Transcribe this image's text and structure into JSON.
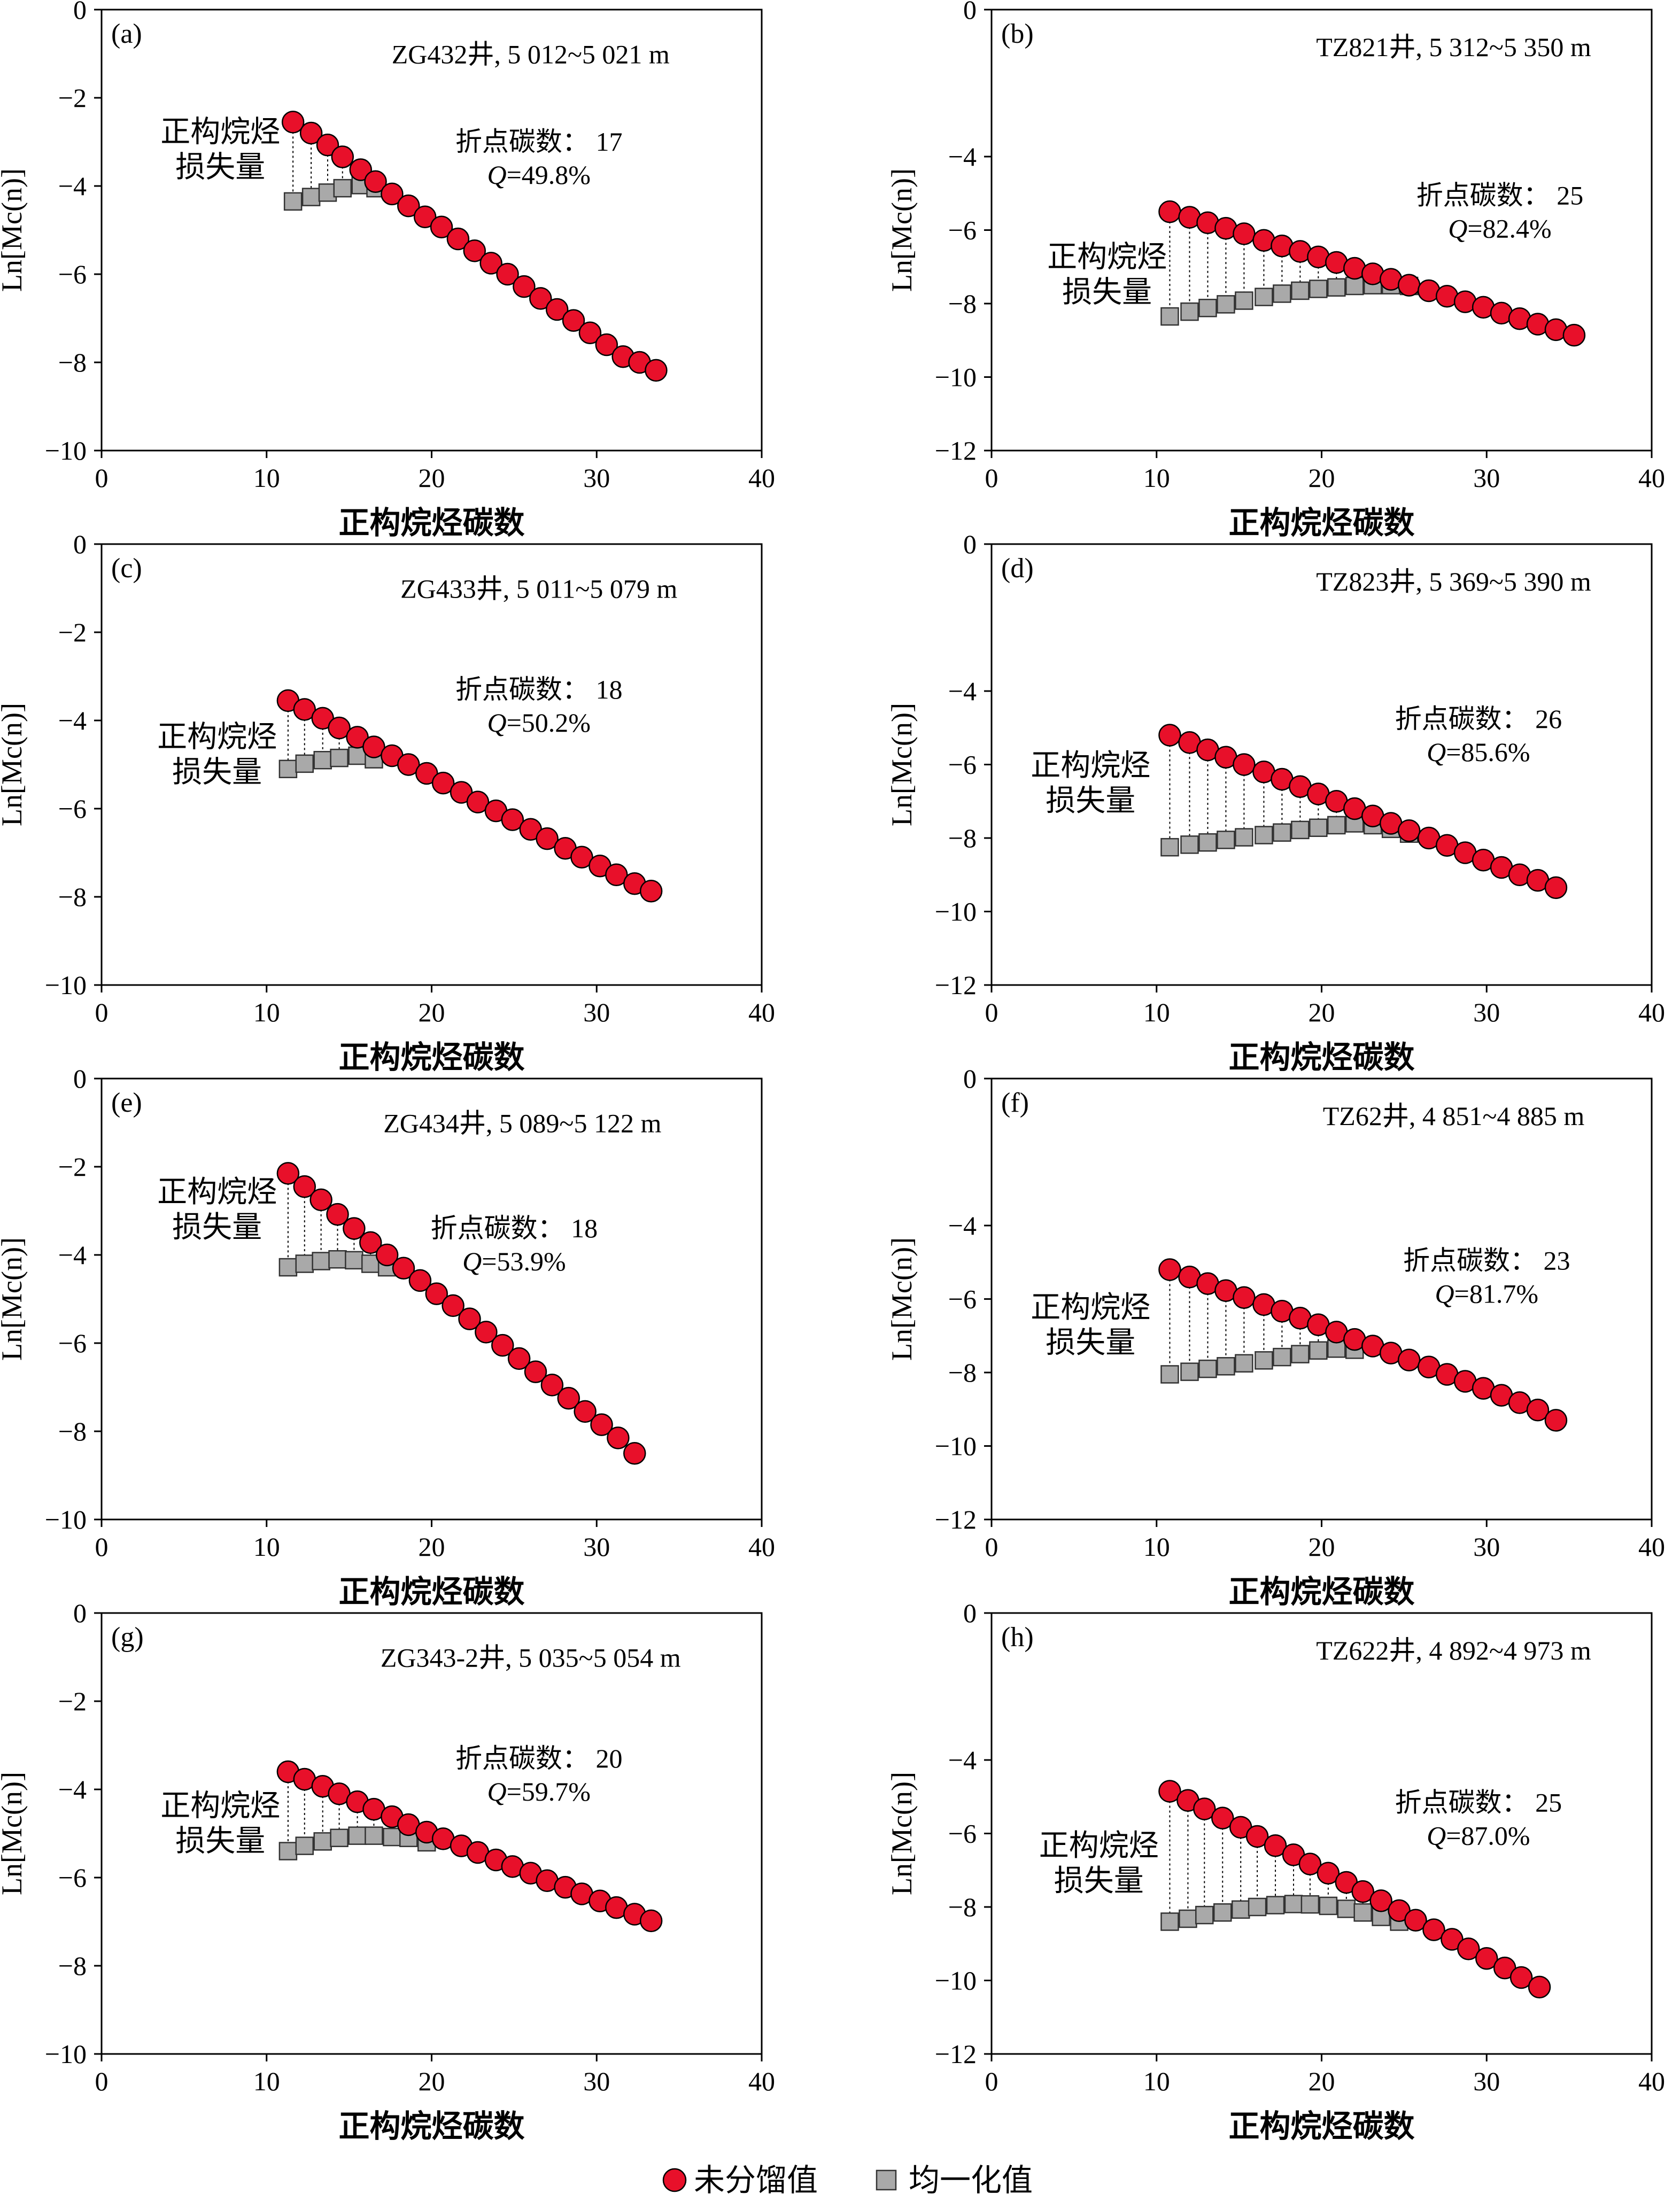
{
  "legend": {
    "raw_label": "未分馏值",
    "homog_label": "均一化值",
    "raw_color": "#e8102a",
    "homog_color": "#a9a9a9"
  },
  "common": {
    "xlabel": "正构烷烃碳数",
    "ylabel": "Ln[Mc(n)]",
    "loss_label_line1": "正构烷烃",
    "loss_label_line2": "损失量",
    "breakpoint_prefix": "折点碳数："
  },
  "chart_data": [
    {
      "panel": "(a)",
      "type": "scatter",
      "well": "ZG432井, 5 012~5 021 m",
      "breakpoint": 17,
      "Q": "49.8%",
      "xlim": [
        0,
        40
      ],
      "ylim": [
        -10,
        0
      ],
      "xticks": [
        0,
        10,
        20,
        30,
        40
      ],
      "yticks": [
        0,
        -2,
        -4,
        -6,
        -8,
        -10
      ],
      "raw_series": {
        "x": [
          11.6,
          12.7,
          13.7,
          14.6,
          15.7,
          16.6,
          17.6,
          18.6,
          19.6,
          20.6,
          21.6,
          22.6,
          23.6,
          24.6,
          25.6,
          26.6,
          27.6,
          28.6,
          29.6,
          30.6,
          31.6,
          32.6,
          33.6
        ],
        "y": [
          -2.55,
          -2.8,
          -3.07,
          -3.34,
          -3.63,
          -3.9,
          -4.18,
          -4.45,
          -4.7,
          -4.93,
          -5.2,
          -5.47,
          -5.75,
          -6.0,
          -6.28,
          -6.55,
          -6.8,
          -7.05,
          -7.33,
          -7.6,
          -7.87,
          -8.0,
          -8.18
        ]
      },
      "homog_series": {
        "x": [
          11.6,
          12.7,
          13.7,
          14.6,
          15.7,
          16.6
        ],
        "y": [
          -4.35,
          -4.25,
          -4.15,
          -4.05,
          -3.98,
          -4.05
        ]
      },
      "annotation_pos": {
        "well_x": 26,
        "well_y": -1.0,
        "bp_x": 26.5,
        "bp_y": -3.2,
        "loss_x": 7.2,
        "loss_y": -3.0
      }
    },
    {
      "panel": "(b)",
      "type": "scatter",
      "well": "TZ821井, 5 312~5 350 m",
      "breakpoint": 25,
      "Q": "82.4%",
      "xlim": [
        0,
        40
      ],
      "ylim": [
        -12,
        0
      ],
      "xticks": [
        0,
        10,
        20,
        30,
        40
      ],
      "yticks": [
        0,
        -4,
        -6,
        -8,
        -10,
        -12
      ],
      "raw_series": {
        "x": [
          10.8,
          12.0,
          13.1,
          14.2,
          15.3,
          16.5,
          17.6,
          18.7,
          19.8,
          20.9,
          22.0,
          23.1,
          24.2,
          25.3,
          26.5,
          27.6,
          28.7,
          29.8,
          30.9,
          32.0,
          33.1,
          34.2,
          35.3
        ],
        "y": [
          -5.5,
          -5.65,
          -5.8,
          -5.95,
          -6.1,
          -6.28,
          -6.43,
          -6.58,
          -6.73,
          -6.88,
          -7.04,
          -7.19,
          -7.34,
          -7.5,
          -7.65,
          -7.8,
          -7.95,
          -8.1,
          -8.26,
          -8.41,
          -8.56,
          -8.71,
          -8.86
        ]
      },
      "homog_series": {
        "x": [
          10.8,
          12.0,
          13.1,
          14.2,
          15.3,
          16.5,
          17.6,
          18.7,
          19.8,
          20.9,
          22.0,
          23.1,
          24.2,
          25.3
        ],
        "y": [
          -8.35,
          -8.22,
          -8.12,
          -8.02,
          -7.92,
          -7.82,
          -7.73,
          -7.65,
          -7.6,
          -7.56,
          -7.52,
          -7.5,
          -7.5,
          -7.52
        ]
      },
      "annotation_pos": {
        "well_x": 28,
        "well_y": -1.0,
        "bp_x": 30.8,
        "bp_y": -5.3,
        "loss_x": 7.0,
        "loss_y": -7.0
      }
    },
    {
      "panel": "(c)",
      "type": "scatter",
      "well": "ZG433井, 5 011~5 079 m",
      "breakpoint": 18,
      "Q": "50.2%",
      "xlim": [
        0,
        40
      ],
      "ylim": [
        -10,
        0
      ],
      "xticks": [
        0,
        10,
        20,
        30,
        40
      ],
      "yticks": [
        0,
        -2,
        -4,
        -6,
        -8,
        -10
      ],
      "raw_series": {
        "x": [
          11.3,
          12.3,
          13.4,
          14.4,
          15.5,
          16.5,
          17.6,
          18.6,
          19.7,
          20.7,
          21.8,
          22.8,
          23.9,
          24.9,
          26.0,
          27.0,
          28.1,
          29.1,
          30.2,
          31.2,
          32.3,
          33.3
        ],
        "y": [
          -3.55,
          -3.75,
          -3.95,
          -4.17,
          -4.38,
          -4.6,
          -4.8,
          -5.0,
          -5.2,
          -5.42,
          -5.63,
          -5.85,
          -6.05,
          -6.25,
          -6.47,
          -6.68,
          -6.9,
          -7.1,
          -7.3,
          -7.5,
          -7.7,
          -7.87
        ]
      },
      "homog_series": {
        "x": [
          11.3,
          12.3,
          13.4,
          14.4,
          15.5,
          16.5
        ],
        "y": [
          -5.1,
          -4.98,
          -4.9,
          -4.85,
          -4.8,
          -4.88
        ]
      },
      "annotation_pos": {
        "well_x": 26.5,
        "well_y": -1.0,
        "bp_x": 26.5,
        "bp_y": -3.5,
        "loss_x": 7.0,
        "loss_y": -4.6
      }
    },
    {
      "panel": "(d)",
      "type": "scatter",
      "well": "TZ823井, 5 369~5 390 m",
      "breakpoint": 26,
      "Q": "85.6%",
      "xlim": [
        0,
        40
      ],
      "ylim": [
        -12,
        0
      ],
      "xticks": [
        0,
        10,
        20,
        30,
        40
      ],
      "yticks": [
        0,
        -4,
        -6,
        -8,
        -10,
        -12
      ],
      "raw_series": {
        "x": [
          10.8,
          12.0,
          13.1,
          14.2,
          15.3,
          16.5,
          17.6,
          18.7,
          19.8,
          20.9,
          22.0,
          23.1,
          24.2,
          25.3,
          26.5,
          27.6,
          28.7,
          29.8,
          30.9,
          32.0,
          33.1,
          34.2
        ],
        "y": [
          -5.2,
          -5.4,
          -5.6,
          -5.8,
          -6.0,
          -6.2,
          -6.4,
          -6.6,
          -6.8,
          -7.0,
          -7.2,
          -7.4,
          -7.6,
          -7.8,
          -8.0,
          -8.2,
          -8.4,
          -8.6,
          -8.8,
          -9.0,
          -9.15,
          -9.35
        ]
      },
      "homog_series": {
        "x": [
          10.8,
          12.0,
          13.1,
          14.2,
          15.3,
          16.5,
          17.6,
          18.7,
          19.8,
          20.9,
          22.0,
          23.1,
          24.2,
          25.3
        ],
        "y": [
          -8.25,
          -8.18,
          -8.12,
          -8.05,
          -7.98,
          -7.92,
          -7.85,
          -7.78,
          -7.72,
          -7.65,
          -7.6,
          -7.65,
          -7.75,
          -7.88
        ]
      },
      "annotation_pos": {
        "well_x": 28,
        "well_y": -1.0,
        "bp_x": 29.5,
        "bp_y": -5.0,
        "loss_x": 6.0,
        "loss_y": -6.3
      }
    },
    {
      "panel": "(e)",
      "type": "scatter",
      "well": "ZG434井, 5 089~5 122 m",
      "breakpoint": 18,
      "Q": "53.9%",
      "xlim": [
        0,
        40
      ],
      "ylim": [
        -10,
        0
      ],
      "xticks": [
        0,
        10,
        20,
        30,
        40
      ],
      "yticks": [
        0,
        -2,
        -4,
        -6,
        -8,
        -10
      ],
      "raw_series": {
        "x": [
          11.3,
          12.3,
          13.3,
          14.3,
          15.3,
          16.3,
          17.3,
          18.3,
          19.3,
          20.3,
          21.3,
          22.3,
          23.3,
          24.3,
          25.3,
          26.3,
          27.3,
          28.3,
          29.3,
          30.3,
          31.3,
          32.3
        ],
        "y": [
          -2.15,
          -2.45,
          -2.75,
          -3.08,
          -3.4,
          -3.72,
          -4.0,
          -4.3,
          -4.58,
          -4.88,
          -5.15,
          -5.45,
          -5.75,
          -6.05,
          -6.35,
          -6.65,
          -6.95,
          -7.25,
          -7.55,
          -7.85,
          -8.15,
          -8.5
        ]
      },
      "homog_series": {
        "x": [
          11.3,
          12.3,
          13.3,
          14.3,
          15.3,
          16.3,
          17.3
        ],
        "y": [
          -4.28,
          -4.2,
          -4.14,
          -4.1,
          -4.12,
          -4.2,
          -4.28
        ]
      },
      "annotation_pos": {
        "well_x": 25.5,
        "well_y": -1.0,
        "bp_x": 25.0,
        "bp_y": -3.6,
        "loss_x": 7.0,
        "loss_y": -2.8
      }
    },
    {
      "panel": "(f)",
      "type": "scatter",
      "well": "TZ62井, 4 851~4 885 m",
      "breakpoint": 23,
      "Q": "81.7%",
      "xlim": [
        0,
        40
      ],
      "ylim": [
        -12,
        0
      ],
      "xticks": [
        0,
        10,
        20,
        30,
        40
      ],
      "yticks": [
        0,
        -4,
        -6,
        -8,
        -10,
        -12
      ],
      "raw_series": {
        "x": [
          10.8,
          12.0,
          13.1,
          14.2,
          15.3,
          16.5,
          17.6,
          18.7,
          19.8,
          20.9,
          22.0,
          23.1,
          24.2,
          25.3,
          26.5,
          27.6,
          28.7,
          29.8,
          30.9,
          32.0,
          33.1,
          34.2
        ],
        "y": [
          -5.2,
          -5.4,
          -5.58,
          -5.77,
          -5.96,
          -6.15,
          -6.33,
          -6.52,
          -6.7,
          -6.9,
          -7.1,
          -7.28,
          -7.47,
          -7.66,
          -7.85,
          -8.05,
          -8.24,
          -8.43,
          -8.62,
          -8.82,
          -9.02,
          -9.3
        ]
      },
      "homog_series": {
        "x": [
          10.8,
          12.0,
          13.1,
          14.2,
          15.3,
          16.5,
          17.6,
          18.7,
          19.8,
          20.9,
          22.0
        ],
        "y": [
          -8.05,
          -7.98,
          -7.9,
          -7.83,
          -7.75,
          -7.67,
          -7.58,
          -7.5,
          -7.4,
          -7.35,
          -7.38
        ]
      },
      "annotation_pos": {
        "well_x": 28,
        "well_y": -1.0,
        "bp_x": 30.0,
        "bp_y": -5.2,
        "loss_x": 6.0,
        "loss_y": -6.5
      }
    },
    {
      "panel": "(g)",
      "type": "scatter",
      "well": "ZG343-2井, 5 035~5 054 m",
      "breakpoint": 20,
      "Q": "59.7%",
      "xlim": [
        0,
        40
      ],
      "ylim": [
        -10,
        0
      ],
      "xticks": [
        0,
        10,
        20,
        30,
        40
      ],
      "yticks": [
        0,
        -2,
        -4,
        -6,
        -8,
        -10
      ],
      "raw_series": {
        "x": [
          11.3,
          12.3,
          13.4,
          14.4,
          15.5,
          16.5,
          17.6,
          18.6,
          19.7,
          20.7,
          21.8,
          22.8,
          23.9,
          24.9,
          26.0,
          27.0,
          28.1,
          29.1,
          30.2,
          31.2,
          32.3,
          33.3
        ],
        "y": [
          -3.6,
          -3.77,
          -3.93,
          -4.1,
          -4.28,
          -4.45,
          -4.62,
          -4.8,
          -4.97,
          -5.12,
          -5.28,
          -5.43,
          -5.6,
          -5.75,
          -5.9,
          -6.07,
          -6.22,
          -6.37,
          -6.53,
          -6.68,
          -6.83,
          -6.98
        ]
      },
      "homog_series": {
        "x": [
          11.3,
          12.3,
          13.4,
          14.4,
          15.5,
          16.5,
          17.6,
          18.6,
          19.7
        ],
        "y": [
          -5.4,
          -5.28,
          -5.18,
          -5.1,
          -5.05,
          -5.05,
          -5.08,
          -5.1,
          -5.2
        ]
      },
      "annotation_pos": {
        "well_x": 26,
        "well_y": -1.0,
        "bp_x": 26.5,
        "bp_y": -3.5,
        "loss_x": 7.2,
        "loss_y": -4.6
      }
    },
    {
      "panel": "(h)",
      "type": "scatter",
      "well": "TZ622井, 4 892~4 973 m",
      "breakpoint": 25,
      "Q": "87.0%",
      "xlim": [
        0,
        40
      ],
      "ylim": [
        -12,
        0
      ],
      "xticks": [
        0,
        10,
        20,
        30,
        40
      ],
      "yticks": [
        0,
        -4,
        -6,
        -8,
        -10,
        -12
      ],
      "raw_series": {
        "x": [
          10.8,
          11.9,
          12.9,
          14.0,
          15.1,
          16.1,
          17.2,
          18.3,
          19.3,
          20.4,
          21.5,
          22.5,
          23.6,
          24.7,
          25.7,
          26.8,
          27.9,
          28.9,
          30.0,
          31.1,
          32.1,
          33.2
        ],
        "y": [
          -4.85,
          -5.1,
          -5.33,
          -5.58,
          -5.83,
          -6.08,
          -6.33,
          -6.58,
          -6.83,
          -7.08,
          -7.33,
          -7.58,
          -7.83,
          -8.1,
          -8.36,
          -8.62,
          -8.88,
          -9.14,
          -9.4,
          -9.66,
          -9.92,
          -10.18
        ]
      },
      "homog_series": {
        "x": [
          10.8,
          11.9,
          12.9,
          14.0,
          15.1,
          16.1,
          17.2,
          18.3,
          19.3,
          20.4,
          21.5,
          22.5,
          23.6,
          24.7
        ],
        "y": [
          -8.4,
          -8.32,
          -8.22,
          -8.15,
          -8.07,
          -8.0,
          -7.95,
          -7.92,
          -7.93,
          -7.97,
          -8.05,
          -8.15,
          -8.27,
          -8.4
        ]
      },
      "annotation_pos": {
        "well_x": 28,
        "well_y": -1.0,
        "bp_x": 29.5,
        "bp_y": -5.4,
        "loss_x": 6.5,
        "loss_y": -6.6
      }
    }
  ]
}
